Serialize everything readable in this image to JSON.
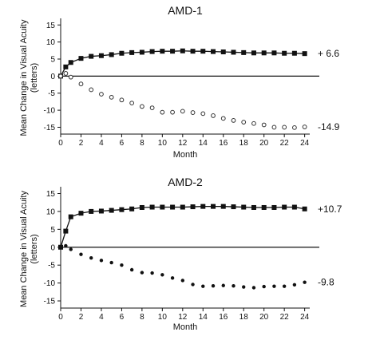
{
  "chart_data": [
    {
      "type": "scatter",
      "title": "AMD-1",
      "ylabel": "Mean Change in Visual Acuity\n(letters)",
      "xlabel": "Month",
      "xlim": [
        0,
        24.5
      ],
      "ylim": [
        -17,
        16
      ],
      "xticks": [
        0,
        2,
        4,
        6,
        8,
        10,
        12,
        14,
        16,
        18,
        20,
        22,
        24
      ],
      "yticks": [
        15,
        10,
        5,
        0,
        -5,
        -10,
        -15
      ],
      "x": [
        0,
        0.5,
        1,
        2,
        3,
        4,
        5,
        6,
        7,
        8,
        9,
        10,
        11,
        12,
        13,
        14,
        15,
        16,
        17,
        18,
        19,
        20,
        21,
        22,
        23,
        24
      ],
      "series": [
        {
          "marker": "filled-square",
          "values": [
            0,
            2.7,
            4.0,
            5.2,
            5.8,
            6.0,
            6.3,
            6.7,
            6.9,
            7.0,
            7.2,
            7.3,
            7.3,
            7.4,
            7.3,
            7.3,
            7.2,
            7.1,
            7.0,
            6.9,
            6.8,
            6.8,
            6.8,
            6.7,
            6.7,
            6.6
          ],
          "end_label": "+ 6.6"
        },
        {
          "marker": "open-circle",
          "values": [
            0,
            0.8,
            -0.3,
            -2.3,
            -4.0,
            -5.3,
            -6.2,
            -7.0,
            -7.9,
            -8.9,
            -9.3,
            -10.6,
            -10.6,
            -10.3,
            -10.7,
            -11.0,
            -11.6,
            -12.4,
            -13.0,
            -13.5,
            -13.9,
            -14.3,
            -15.0,
            -15.0,
            -15.1,
            -14.9
          ],
          "end_label": "-14.9"
        }
      ]
    },
    {
      "type": "scatter",
      "title": "AMD-2",
      "ylabel": "Mean Change in Visual Acuity\n(letters)",
      "xlabel": "Month",
      "xlim": [
        0,
        24.5
      ],
      "ylim": [
        -17,
        16
      ],
      "xticks": [
        0,
        2,
        4,
        6,
        8,
        10,
        12,
        14,
        16,
        18,
        20,
        22,
        24
      ],
      "yticks": [
        15,
        10,
        5,
        0,
        -5,
        -10,
        -15
      ],
      "x": [
        0,
        0.5,
        1,
        2,
        3,
        4,
        5,
        6,
        7,
        8,
        9,
        10,
        11,
        12,
        13,
        14,
        15,
        16,
        17,
        18,
        19,
        20,
        21,
        22,
        23,
        24
      ],
      "series": [
        {
          "marker": "filled-square",
          "values": [
            0,
            4.5,
            8.5,
            9.5,
            10.0,
            10.1,
            10.3,
            10.5,
            10.7,
            11.1,
            11.2,
            11.2,
            11.2,
            11.2,
            11.3,
            11.4,
            11.4,
            11.4,
            11.3,
            11.2,
            11.1,
            11.1,
            11.1,
            11.2,
            11.2,
            10.7
          ],
          "end_label": "+10.7"
        },
        {
          "marker": "filled-circle",
          "values": [
            0,
            0.4,
            -0.6,
            -2.0,
            -3.0,
            -3.7,
            -4.3,
            -5.0,
            -6.3,
            -7.1,
            -7.2,
            -7.7,
            -8.6,
            -9.3,
            -10.4,
            -10.9,
            -10.8,
            -10.7,
            -10.8,
            -11.1,
            -11.3,
            -11.0,
            -10.9,
            -10.9,
            -10.5,
            -9.8
          ],
          "end_label": "-9.8"
        }
      ]
    }
  ]
}
